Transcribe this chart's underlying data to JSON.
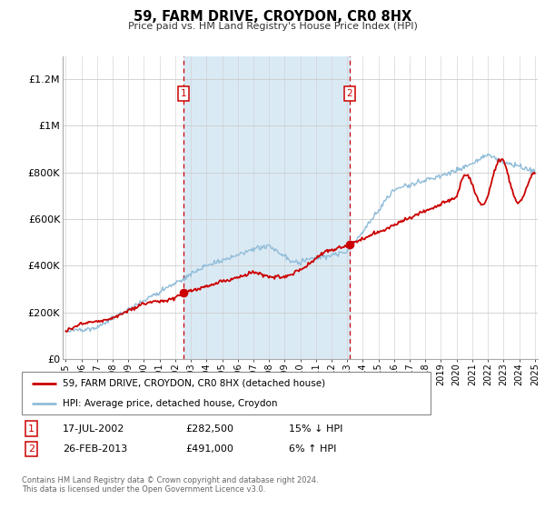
{
  "title": "59, FARM DRIVE, CROYDON, CR0 8HX",
  "subtitle": "Price paid vs. HM Land Registry's House Price Index (HPI)",
  "ylim": [
    0,
    1300000
  ],
  "xlim": [
    1994.8,
    2025.2
  ],
  "background_color": "#ffffff",
  "plot_bg_color": "#ffffff",
  "grid_color": "#cccccc",
  "shaded_region": [
    2002.54,
    2013.15
  ],
  "shaded_color": "#daeaf5",
  "sale1_x": 2002.54,
  "sale1_y": 282500,
  "sale2_x": 2013.15,
  "sale2_y": 491000,
  "sale1_label": "1",
  "sale2_label": "2",
  "sale_marker_color": "#cc0000",
  "sale_marker_size": 7,
  "hpi_line_color": "#90bcd8",
  "price_line_color": "#cc0000",
  "legend_label_price": "59, FARM DRIVE, CROYDON, CR0 8HX (detached house)",
  "legend_label_hpi": "HPI: Average price, detached house, Croydon",
  "table_row1": [
    "1",
    "17-JUL-2002",
    "£282,500",
    "15% ↓ HPI"
  ],
  "table_row2": [
    "2",
    "26-FEB-2013",
    "£491,000",
    "6% ↑ HPI"
  ],
  "footer": "Contains HM Land Registry data © Crown copyright and database right 2024.\nThis data is licensed under the Open Government Licence v3.0.",
  "ytick_labels": [
    "£0",
    "£200K",
    "£400K",
    "£600K",
    "£800K",
    "£1M",
    "£1.2M"
  ],
  "ytick_values": [
    0,
    200000,
    400000,
    600000,
    800000,
    1000000,
    1200000
  ],
  "xtick_years": [
    1995,
    1996,
    1997,
    1998,
    1999,
    2000,
    2001,
    2002,
    2003,
    2004,
    2005,
    2006,
    2007,
    2008,
    2009,
    2010,
    2011,
    2012,
    2013,
    2014,
    2015,
    2016,
    2017,
    2018,
    2019,
    2020,
    2021,
    2022,
    2023,
    2024,
    2025
  ]
}
